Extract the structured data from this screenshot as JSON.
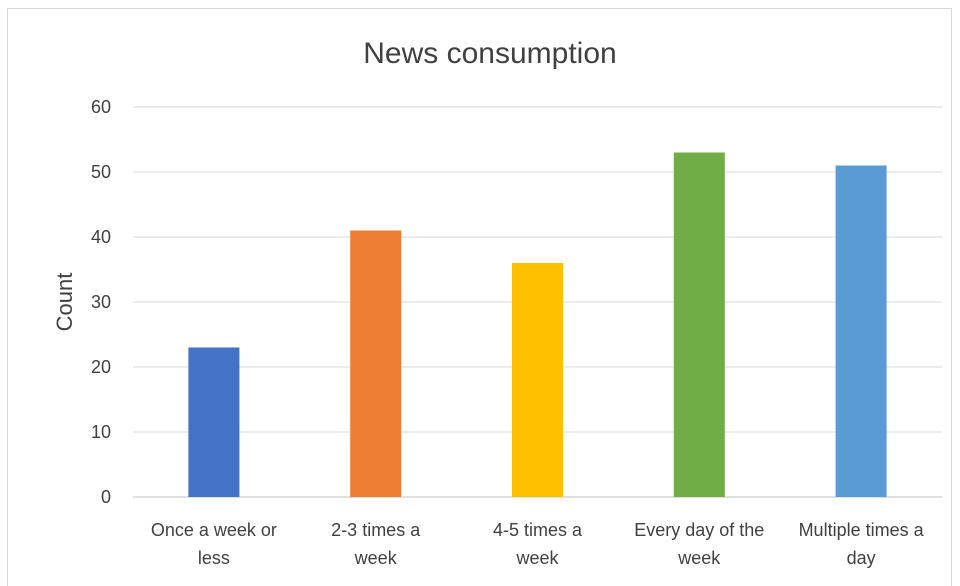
{
  "chart_data": {
    "type": "bar",
    "title": "News consumption",
    "xlabel": "",
    "ylabel": "Count",
    "ylim": [
      0,
      60
    ],
    "yticks": [
      0,
      10,
      20,
      30,
      40,
      50,
      60
    ],
    "grid": true,
    "legend": "none",
    "categories": [
      [
        "Once a week or",
        "less"
      ],
      [
        "2-3 times a",
        "week"
      ],
      [
        "4-5 times a",
        "week"
      ],
      [
        "Every day of the",
        "week"
      ],
      [
        "Multiple times a",
        "day"
      ]
    ],
    "values": [
      23,
      41,
      36,
      53,
      51
    ],
    "colors": [
      "#4472C4",
      "#ED7D31",
      "#FFC000",
      "#70AD47",
      "#5B9BD5"
    ]
  }
}
